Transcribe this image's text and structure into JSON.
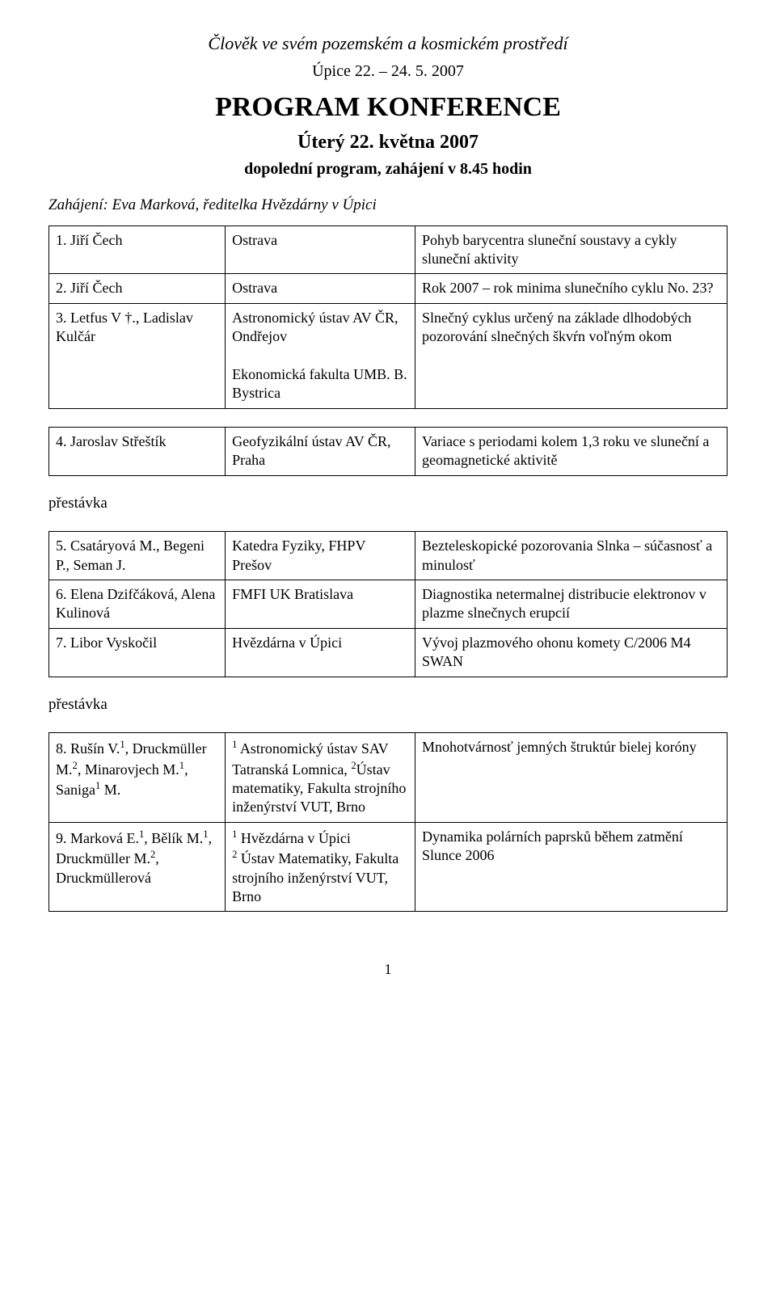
{
  "header": {
    "italic_title": "Člověk ve svém pozemském a kosmickém prostředí",
    "date_line": "Úpice 22. – 24. 5. 2007",
    "main": "PROGRAM  KONFERENCE",
    "day": "Úterý 22. května 2007",
    "sub": "dopolední program, zahájení v 8.45 hodin"
  },
  "opening": "Zahájení: Eva Marková, ředitelka Hvězdárny v Úpici",
  "table1": {
    "rows": [
      {
        "c1": "1. Jiří Čech",
        "c2": "Ostrava",
        "c3": "Pohyb barycentra sluneční soustavy a cykly sluneční aktivity"
      },
      {
        "c1": "2. Jiří Čech",
        "c2": "Ostrava",
        "c3": "Rok 2007 – rok minima slunečního cyklu No. 23?"
      },
      {
        "c1": "3. Letfus V †., Ladislav Kulčár",
        "c2": "Astronomický ústav AV ČR, Ondřejov\nEkonomická fakulta UMB. B. Bystrica",
        "c3": "Slnečný cyklus určený na základe dlhodobých pozorování slnečných škvŕn voľným okom"
      }
    ]
  },
  "table2": {
    "rows": [
      {
        "c1": "4. Jaroslav Střeštík",
        "c2": "Geofyzikální ústav AV ČR, Praha",
        "c3": "Variace s periodami kolem 1,3 roku ve sluneční a geomagnetické aktivitě"
      }
    ]
  },
  "break_label": "přestávka",
  "table3": {
    "rows": [
      {
        "c1": "5. Csatáryová M., Begeni P., Seman J.",
        "c2": "Katedra Fyziky, FHPV Prešov",
        "c3": "Bezteleskopické pozorovania Slnka – súčasnosť a minulosť"
      },
      {
        "c1": "6. Elena Dzifčáková, Alena Kulinová",
        "c2": "FMFI UK Bratislava",
        "c3": "Diagnostika netermalnej distribucie elektronov v plazme slnečnych erupcií"
      },
      {
        "c1": "7. Libor Vyskočil",
        "c2": "Hvězdárna v Úpici",
        "c3": "Vývoj plazmového ohonu komety C/2006 M4 SWAN"
      }
    ]
  },
  "table4": {
    "rows": [
      {
        "c1_html": "8. Rušín V.<sup>1</sup>, Druckmüller M.<sup>2</sup>, Minarovjech M.<sup>1</sup>, Saniga<sup>1</sup> M.",
        "c2_html": "<sup>1</sup> Astronomický ústav SAV Tatranská Lomnica, <sup>2</sup>Ústav matematiky, Fakulta strojního inženýrství VUT, Brno",
        "c3": "Mnohotvárnosť jemných štruktúr bielej koróny"
      },
      {
        "c1_html": "9. Marková E.<sup>1</sup>, Bělík M.<sup>1</sup>, Druckmüller M.<sup>2</sup>, Druckmüllerová",
        "c2_html": "<sup>1</sup> Hvězdárna v Úpici<br><sup>2</sup> Ústav Matematiky, Fakulta strojního inženýrství VUT, Brno",
        "c3": "Dynamika polárních paprsků během zatmění Slunce 2006"
      }
    ]
  },
  "page_number": "1"
}
